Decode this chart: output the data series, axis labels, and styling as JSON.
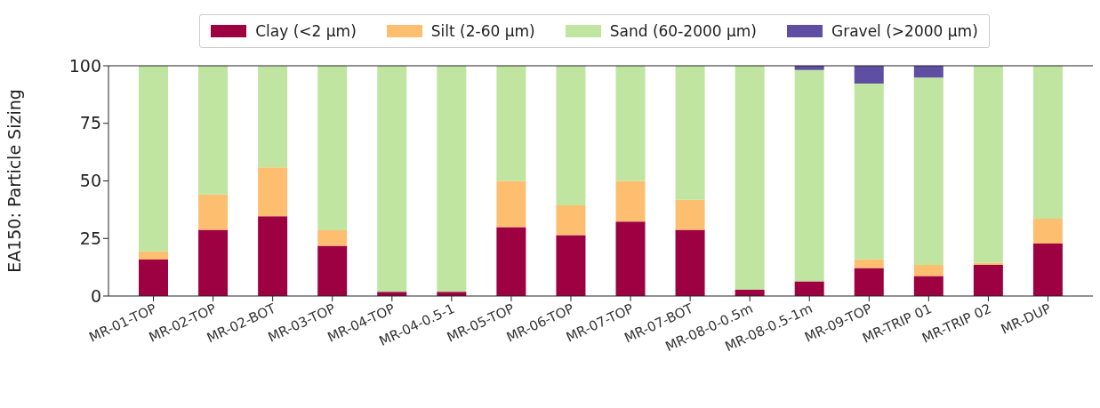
{
  "chart_data": {
    "type": "bar",
    "stacked": true,
    "ylabel": "EA150: Particle Sizing",
    "categories": [
      "MR-01-TOP",
      "MR-02-TOP",
      "MR-02-BOT",
      "MR-03-TOP",
      "MR-04-TOP",
      "MR-04-0.5-1",
      "MR-05-TOP",
      "MR-06-TOP",
      "MR-07-TOP",
      "MR-07-BOT",
      "MR-08-0-0.5m",
      "MR-08-0.5-1m",
      "MR-09-TOP",
      "MR-TRIP 01",
      "MR-TRIP 02",
      "MR-DUP"
    ],
    "series": [
      {
        "name": "Clay (<2 µm)",
        "color": "#9e0142",
        "values": [
          15.8,
          28.8,
          34.7,
          21.8,
          1.8,
          1.8,
          29.9,
          26.4,
          32.3,
          28.8,
          2.8,
          6.4,
          12.2,
          8.7,
          13.5,
          22.8
        ]
      },
      {
        "name": "Silt (2-60 µm)",
        "color": "#fdbf6f",
        "values": [
          3.6,
          15.3,
          21.2,
          6.8,
          0,
          0,
          20.1,
          13,
          17.7,
          13,
          0,
          0,
          3.7,
          4.8,
          0.9,
          10.8
        ]
      },
      {
        "name": "Sand (60-2000 µm)",
        "color": "#bfe5a0",
        "values": [
          80.6,
          55.9,
          43.9,
          71.4,
          98.2,
          98.2,
          50,
          60.6,
          50,
          58.2,
          97.2,
          91.8,
          76.4,
          81.4,
          85.6,
          66.4
        ]
      },
      {
        "name": "Gravel (>2000 µm)",
        "color": "#5e4fa2",
        "values": [
          0,
          0,
          0,
          0,
          0,
          0,
          0,
          0,
          0,
          0,
          0,
          1.8,
          7.7,
          5.1,
          0,
          0
        ]
      }
    ],
    "ylim": [
      0,
      100
    ],
    "yticks": [
      0,
      25,
      50,
      75,
      100
    ],
    "legend": "top"
  }
}
